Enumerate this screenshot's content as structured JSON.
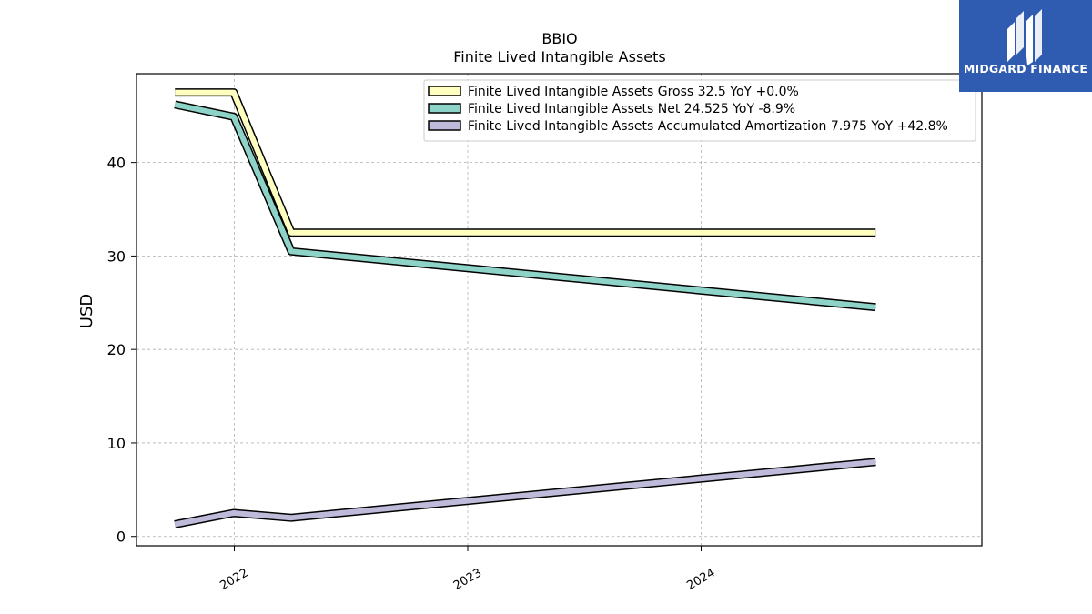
{
  "logo": {
    "text": "MIDGARD FINANCE",
    "icon": "midgard-m-icon",
    "color": "#2f5bb0"
  },
  "chart_data": {
    "type": "line",
    "title": "BBIO",
    "subtitle": "Finite Lived Intangible Assets",
    "xlabel": "",
    "ylabel": "USD",
    "xlim": [
      "2021-08-01",
      "2025-03-15"
    ],
    "ylim": [
      -1,
      49.5
    ],
    "yticks": [
      0,
      10,
      20,
      30,
      40
    ],
    "xticks": [
      {
        "date": "2022-01-01",
        "label": "2022"
      },
      {
        "date": "2023-01-01",
        "label": "2023"
      },
      {
        "date": "2024-01-01",
        "label": "2024"
      }
    ],
    "grid": true,
    "legend_position": "top-right",
    "series": [
      {
        "name": "Finite Lived Intangible Assets Gross",
        "legend": "Finite Lived Intangible Assets Gross  32.5 YoY +0.0%",
        "color": "#ffffc0",
        "x": [
          "2021-09-30",
          "2021-12-31",
          "2022-03-31",
          "2024-09-30"
        ],
        "values": [
          47.5,
          47.5,
          32.5,
          32.5
        ]
      },
      {
        "name": "Finite Lived Intangible Assets Net",
        "legend": "Finite Lived Intangible Assets Net  24.525 YoY -8.9%",
        "color": "#8dd3c7",
        "x": [
          "2021-09-30",
          "2021-12-31",
          "2022-03-31",
          "2024-09-30"
        ],
        "values": [
          46.2,
          44.9,
          30.5,
          24.525
        ]
      },
      {
        "name": "Finite Lived Intangible Assets Accumulated Amortization",
        "legend": "Finite Lived Intangible Assets Accumulated Amortization  7.975 YoY +42.8%",
        "color": "#bebada",
        "x": [
          "2021-09-30",
          "2021-12-31",
          "2022-03-31",
          "2024-09-30"
        ],
        "values": [
          1.3,
          2.5,
          2.0,
          7.975
        ]
      }
    ]
  }
}
